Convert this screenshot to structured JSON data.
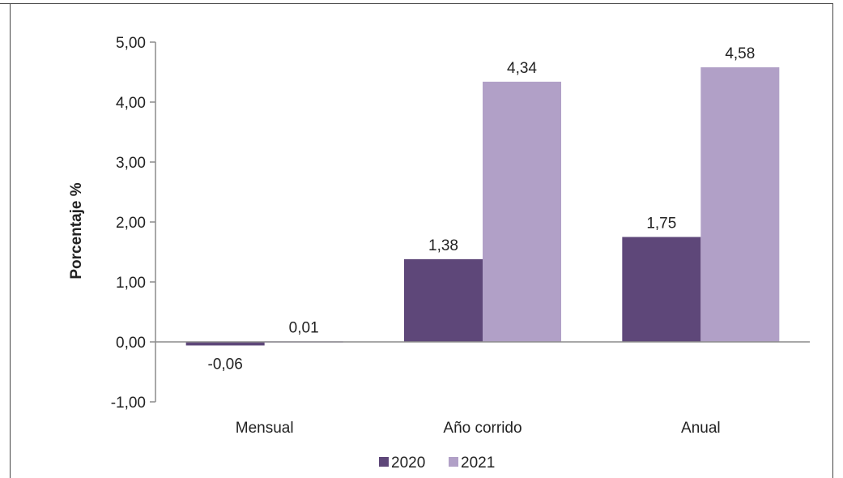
{
  "chart_data": {
    "type": "bar",
    "categories": [
      "Mensual",
      "Año corrido",
      "Anual"
    ],
    "series": [
      {
        "name": "2020",
        "values": [
          -0.06,
          1.38,
          1.75
        ],
        "labels": [
          "-0,06",
          "1,38",
          "1,75"
        ],
        "color": "#5e4779"
      },
      {
        "name": "2021",
        "values": [
          0.01,
          4.34,
          4.58
        ],
        "labels": [
          "0,01",
          "4,34",
          "4,58"
        ],
        "color": "#b1a0c7"
      }
    ],
    "title": "",
    "xlabel": "",
    "ylabel": "Porcentaje %",
    "ylim": [
      -1,
      5
    ],
    "yticks": [
      -1,
      0,
      1,
      2,
      3,
      4,
      5
    ],
    "ytick_labels": [
      "-1,00",
      "0,00",
      "1,00",
      "2,00",
      "3,00",
      "4,00",
      "5,00"
    ],
    "grid": false,
    "legend": "bottom-center"
  }
}
